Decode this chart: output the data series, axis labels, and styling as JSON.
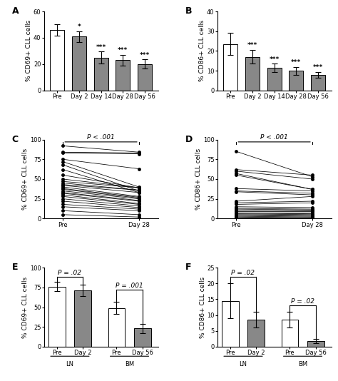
{
  "panel_A": {
    "label": "A",
    "categories": [
      "Pre",
      "Day 2",
      "Day 14",
      "Day 28",
      "Day 56"
    ],
    "values": [
      46,
      41,
      25,
      23,
      20
    ],
    "errors": [
      4.5,
      4.0,
      4.5,
      4.0,
      3.5
    ],
    "colors": [
      "white",
      "#888888",
      "#888888",
      "#888888",
      "#888888"
    ],
    "sig": [
      "",
      "*",
      "***",
      "***",
      "***"
    ],
    "ylabel": "% CD69+ CLL cells",
    "ylim": [
      0,
      60
    ],
    "yticks": [
      0,
      20,
      40,
      60
    ]
  },
  "panel_B": {
    "label": "B",
    "categories": [
      "Pre",
      "Day 2",
      "Day 14",
      "Day 28",
      "Day 56"
    ],
    "values": [
      23.5,
      17,
      11.5,
      10,
      8
    ],
    "errors": [
      5.5,
      3.5,
      2.0,
      2.0,
      1.5
    ],
    "colors": [
      "white",
      "#888888",
      "#888888",
      "#888888",
      "#888888"
    ],
    "sig": [
      "",
      "***",
      "***",
      "***",
      "***"
    ],
    "ylabel": "% CD86+ CLL cells",
    "ylim": [
      0,
      40
    ],
    "yticks": [
      0,
      10,
      20,
      30,
      40
    ]
  },
  "panel_C": {
    "label": "C",
    "pre_values": [
      92,
      84,
      83,
      75,
      72,
      68,
      62,
      55,
      50,
      47,
      45,
      43,
      42,
      40,
      38,
      37,
      35,
      33,
      32,
      30,
      28,
      25,
      22,
      18,
      15,
      10,
      5
    ],
    "day28_values": [
      84,
      83,
      82,
      63,
      40,
      35,
      33,
      39,
      39,
      39,
      36,
      36,
      33,
      28,
      27,
      26,
      25,
      23,
      22,
      19,
      18,
      16,
      14,
      12,
      10,
      5,
      2
    ],
    "ylabel": "% CD69+ CLL cells",
    "ylim": [
      0,
      100
    ],
    "yticks": [
      0,
      25,
      50,
      75,
      100
    ],
    "ptext": "P < .001"
  },
  "panel_D": {
    "label": "D",
    "pre_values": [
      85,
      62,
      60,
      57,
      55,
      38,
      35,
      34,
      22,
      20,
      18,
      15,
      13,
      12,
      10,
      9,
      8,
      7,
      6,
      5,
      4,
      3,
      2,
      1
    ],
    "day28_values": [
      53,
      55,
      50,
      37,
      37,
      35,
      32,
      30,
      28,
      22,
      20,
      14,
      12,
      11,
      10,
      9,
      8,
      6,
      5,
      4,
      3,
      2,
      1,
      1
    ],
    "ylabel": "% CD86+ CLL cells",
    "ylim": [
      0,
      100
    ],
    "yticks": [
      0,
      25,
      50,
      75,
      100
    ],
    "ptext": "P < .001"
  },
  "panel_E": {
    "label": "E",
    "values": [
      76,
      71,
      49,
      23
    ],
    "errors": [
      6,
      7,
      8,
      6
    ],
    "colors": [
      "white",
      "#888888",
      "white",
      "#888888"
    ],
    "ylabel": "% CD69+ CLL cells",
    "ylim": [
      0,
      100
    ],
    "yticks": [
      0,
      25,
      50,
      75,
      100
    ],
    "bracket1_ptext": "P = .02",
    "bracket2_ptext": "P = .001",
    "group_labels": [
      "LN",
      "BM"
    ],
    "xtick_labels": [
      "Pre",
      "Day 2",
      "Pre",
      "Day 56"
    ]
  },
  "panel_F": {
    "label": "F",
    "values": [
      14.5,
      8.5,
      8.5,
      1.8
    ],
    "errors": [
      5.5,
      2.5,
      2.5,
      0.7
    ],
    "colors": [
      "white",
      "#888888",
      "white",
      "#888888"
    ],
    "ylabel": "% CD86+ CLL cells",
    "ylim": [
      0,
      25
    ],
    "yticks": [
      0,
      5,
      10,
      15,
      20,
      25
    ],
    "bracket1_ptext": "P = .02",
    "bracket2_ptext": "P = .02",
    "group_labels": [
      "LN",
      "BM"
    ],
    "xtick_labels": [
      "Pre",
      "Day 2",
      "Pre",
      "Day 56"
    ]
  },
  "edgecolor": "black",
  "bar_width": 0.65,
  "capsize": 3,
  "fontsize_label": 6.5,
  "fontsize_tick": 6,
  "fontsize_panel": 9,
  "fontsize_sig": 6.5,
  "fontsize_pval": 6.5
}
